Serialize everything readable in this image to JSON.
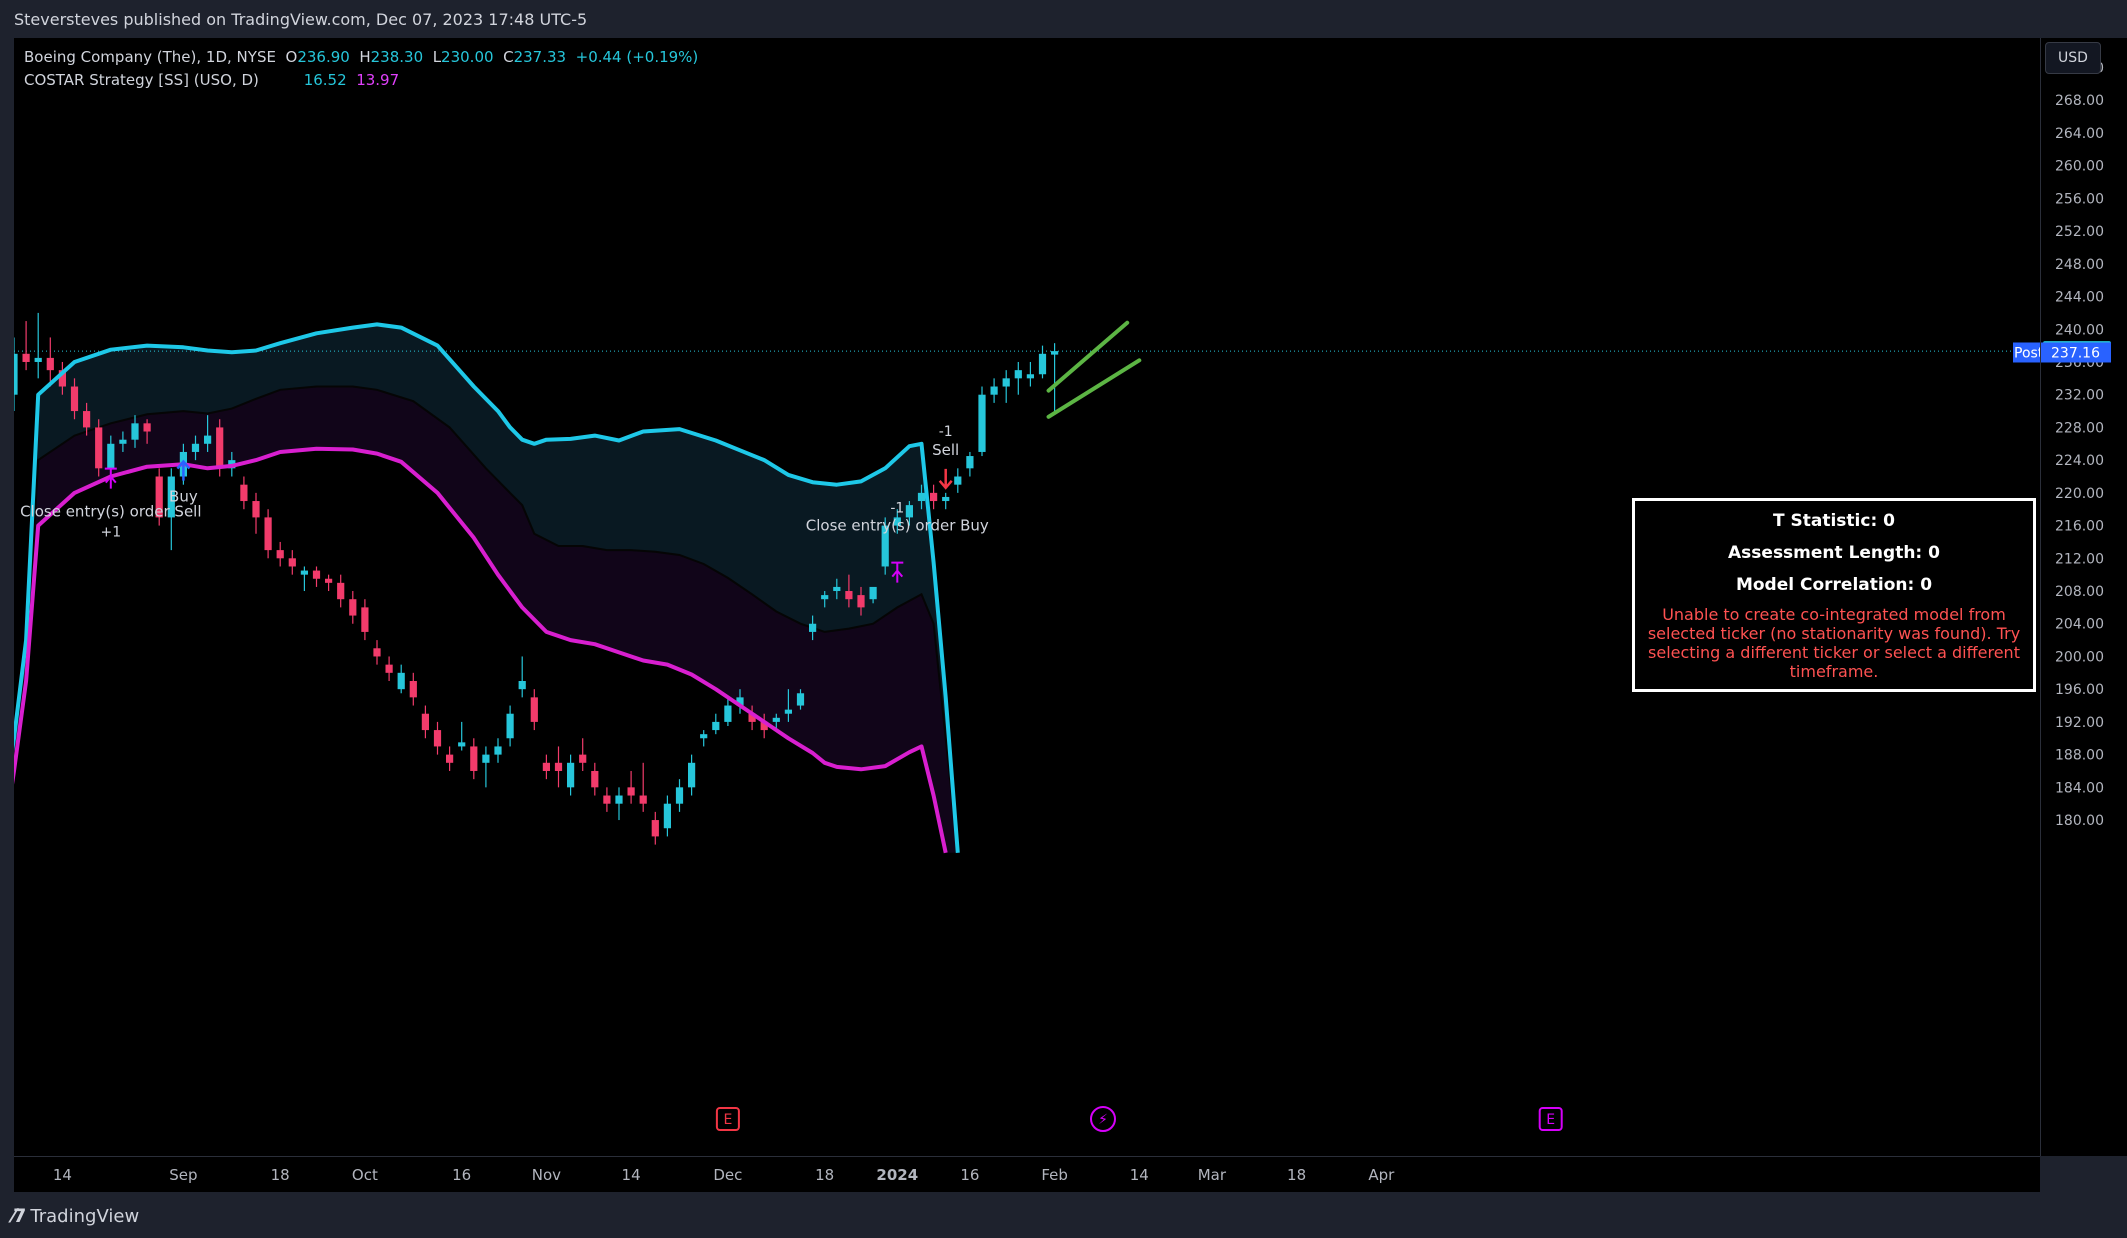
{
  "header": {
    "credit": "Steversteves published on TradingView.com, Dec 07, 2023 17:48 UTC-5"
  },
  "legend": {
    "line1_name": "Boeing Company (The), 1D, NYSE",
    "o_label": "O",
    "o_value": "236.90",
    "h_label": "H",
    "h_value": "238.30",
    "l_label": "L",
    "l_value": "230.00",
    "c_label": "C",
    "c_value": "237.33",
    "change": "+0.44 (+0.19%)",
    "line2_name": "COSTAR Strategy [SS] (USO, D)",
    "ind_value1": "16.52",
    "ind_value2": "13.97"
  },
  "currency_button": "USD",
  "footer": {
    "brand": "TradingView"
  },
  "info_box": {
    "t_stat": "T Statistic: 0",
    "assessment": "Assessment Length: 0",
    "correlation": "Model Correlation: 0",
    "warning": "Unable to create co-integrated model from selected ticker (no stationarity was found). Try selecting a different ticker or select a different timeframe."
  },
  "colors": {
    "up": "#26c6da",
    "down": "#f23b6b",
    "upper_band": "#1ec8e8",
    "lower_band": "#d81fcf",
    "trend": "#5cb544",
    "background": "#000000"
  },
  "chart_data": {
    "type": "candlestick",
    "symbol": "Boeing Company (The), 1D, NYSE",
    "ylim": [
      176,
      275
    ],
    "y_ticks": [
      "272.00",
      "268.00",
      "264.00",
      "260.00",
      "256.00",
      "252.00",
      "248.00",
      "244.00",
      "240.00",
      "236.00",
      "232.00",
      "228.00",
      "224.00",
      "220.00",
      "216.00",
      "212.00",
      "208.00",
      "204.00",
      "200.00",
      "196.00",
      "192.00",
      "188.00",
      "184.00",
      "180.00"
    ],
    "x_ticks": [
      "14",
      "Sep",
      "18",
      "Oct",
      "16",
      "Nov",
      "14",
      "Dec",
      "18",
      "2024",
      "16",
      "Feb",
      "14",
      "Mar",
      "18",
      "Apr"
    ],
    "last_price": "237.33",
    "post_label": "Post",
    "post_price": "237.16",
    "candles": [
      {
        "o": 232,
        "h": 239,
        "l": 230,
        "c": 237
      },
      {
        "o": 237,
        "h": 241,
        "l": 235,
        "c": 236
      },
      {
        "o": 236,
        "h": 242,
        "l": 234,
        "c": 236.5
      },
      {
        "o": 236.5,
        "h": 239,
        "l": 233,
        "c": 235
      },
      {
        "o": 235,
        "h": 236,
        "l": 232,
        "c": 233
      },
      {
        "o": 233,
        "h": 234,
        "l": 229,
        "c": 230
      },
      {
        "o": 230,
        "h": 231,
        "l": 227,
        "c": 228
      },
      {
        "o": 228,
        "h": 229,
        "l": 222,
        "c": 223
      },
      {
        "o": 223,
        "h": 227,
        "l": 221,
        "c": 226
      },
      {
        "o": 226,
        "h": 227.5,
        "l": 225,
        "c": 226.5
      },
      {
        "o": 226.5,
        "h": 229.5,
        "l": 225.5,
        "c": 228.5
      },
      {
        "o": 228.5,
        "h": 229,
        "l": 226,
        "c": 227.5
      },
      {
        "o": 222,
        "h": 223,
        "l": 216,
        "c": 217
      },
      {
        "o": 217,
        "h": 223,
        "l": 213,
        "c": 222
      },
      {
        "o": 222,
        "h": 226,
        "l": 221,
        "c": 225
      },
      {
        "o": 225,
        "h": 227,
        "l": 224,
        "c": 226
      },
      {
        "o": 226,
        "h": 229.5,
        "l": 225,
        "c": 227
      },
      {
        "o": 228,
        "h": 229,
        "l": 222,
        "c": 223
      },
      {
        "o": 223,
        "h": 225,
        "l": 222,
        "c": 224
      },
      {
        "o": 221,
        "h": 222,
        "l": 218,
        "c": 219
      },
      {
        "o": 219,
        "h": 220,
        "l": 215,
        "c": 217
      },
      {
        "o": 217,
        "h": 218,
        "l": 212,
        "c": 213
      },
      {
        "o": 213,
        "h": 214,
        "l": 211,
        "c": 212
      },
      {
        "o": 212,
        "h": 213,
        "l": 210,
        "c": 211
      },
      {
        "o": 210,
        "h": 211,
        "l": 208,
        "c": 210.5
      },
      {
        "o": 210.5,
        "h": 211,
        "l": 208.5,
        "c": 209.5
      },
      {
        "o": 209.5,
        "h": 210,
        "l": 208,
        "c": 209
      },
      {
        "o": 209,
        "h": 210,
        "l": 206,
        "c": 207
      },
      {
        "o": 207,
        "h": 208,
        "l": 204,
        "c": 205
      },
      {
        "o": 206,
        "h": 207,
        "l": 202,
        "c": 203
      },
      {
        "o": 201,
        "h": 202,
        "l": 199,
        "c": 200
      },
      {
        "o": 199,
        "h": 200,
        "l": 197,
        "c": 198
      },
      {
        "o": 196,
        "h": 199,
        "l": 195.5,
        "c": 198
      },
      {
        "o": 197,
        "h": 198,
        "l": 194,
        "c": 195
      },
      {
        "o": 193,
        "h": 194,
        "l": 190,
        "c": 191
      },
      {
        "o": 191,
        "h": 192,
        "l": 188,
        "c": 189
      },
      {
        "o": 188,
        "h": 189,
        "l": 186,
        "c": 187
      },
      {
        "o": 189,
        "h": 192,
        "l": 188.5,
        "c": 189.5
      },
      {
        "o": 189,
        "h": 190,
        "l": 185,
        "c": 186
      },
      {
        "o": 187,
        "h": 189,
        "l": 184,
        "c": 188
      },
      {
        "o": 188,
        "h": 190,
        "l": 187,
        "c": 189
      },
      {
        "o": 190,
        "h": 194,
        "l": 189,
        "c": 193
      },
      {
        "o": 196,
        "h": 200,
        "l": 195,
        "c": 197
      },
      {
        "o": 195,
        "h": 196,
        "l": 191,
        "c": 192
      },
      {
        "o": 187,
        "h": 188,
        "l": 185,
        "c": 186
      },
      {
        "o": 187,
        "h": 189,
        "l": 184,
        "c": 186
      },
      {
        "o": 184,
        "h": 188,
        "l": 183,
        "c": 187
      },
      {
        "o": 188,
        "h": 190,
        "l": 186,
        "c": 187
      },
      {
        "o": 186,
        "h": 187,
        "l": 183,
        "c": 184
      },
      {
        "o": 183,
        "h": 184,
        "l": 181,
        "c": 182
      },
      {
        "o": 182,
        "h": 184,
        "l": 180,
        "c": 183
      },
      {
        "o": 184,
        "h": 186,
        "l": 182,
        "c": 183
      },
      {
        "o": 183,
        "h": 187,
        "l": 181,
        "c": 182
      },
      {
        "o": 180,
        "h": 181,
        "l": 177,
        "c": 178
      },
      {
        "o": 179,
        "h": 183,
        "l": 178,
        "c": 182
      },
      {
        "o": 182,
        "h": 185,
        "l": 181,
        "c": 184
      },
      {
        "o": 184,
        "h": 188,
        "l": 183,
        "c": 187
      },
      {
        "o": 190,
        "h": 191,
        "l": 189,
        "c": 190.5
      },
      {
        "o": 191,
        "h": 193,
        "l": 190.5,
        "c": 192
      },
      {
        "o": 192,
        "h": 195,
        "l": 191.5,
        "c": 194
      },
      {
        "o": 194,
        "h": 196,
        "l": 193,
        "c": 195
      },
      {
        "o": 193,
        "h": 194,
        "l": 191,
        "c": 192
      },
      {
        "o": 192,
        "h": 193,
        "l": 190,
        "c": 191
      },
      {
        "o": 192,
        "h": 193,
        "l": 191,
        "c": 192.5
      },
      {
        "o": 193,
        "h": 196,
        "l": 192,
        "c": 193.5
      },
      {
        "o": 194,
        "h": 196,
        "l": 193.5,
        "c": 195.5
      },
      {
        "o": 203,
        "h": 205,
        "l": 202,
        "c": 204
      },
      {
        "o": 207,
        "h": 208,
        "l": 206,
        "c": 207.5
      },
      {
        "o": 208,
        "h": 209.5,
        "l": 207,
        "c": 208.5
      },
      {
        "o": 208,
        "h": 210,
        "l": 206,
        "c": 207
      },
      {
        "o": 207.5,
        "h": 208.5,
        "l": 205,
        "c": 206
      },
      {
        "o": 207,
        "h": 208,
        "l": 206.5,
        "c": 208.5
      },
      {
        "o": 211,
        "h": 217,
        "l": 210,
        "c": 216
      },
      {
        "o": 216,
        "h": 218,
        "l": 215,
        "c": 217
      },
      {
        "o": 217,
        "h": 219,
        "l": 216,
        "c": 218.5
      },
      {
        "o": 219,
        "h": 221,
        "l": 218,
        "c": 220
      },
      {
        "o": 220,
        "h": 221,
        "l": 218,
        "c": 219
      },
      {
        "o": 219,
        "h": 220,
        "l": 218,
        "c": 219.5
      },
      {
        "o": 221,
        "h": 223,
        "l": 220,
        "c": 222
      },
      {
        "o": 223,
        "h": 225,
        "l": 222,
        "c": 224.5
      },
      {
        "o": 225,
        "h": 233,
        "l": 224.5,
        "c": 232
      },
      {
        "o": 232,
        "h": 234,
        "l": 231,
        "c": 233
      },
      {
        "o": 233,
        "h": 235,
        "l": 231,
        "c": 234
      },
      {
        "o": 234,
        "h": 236,
        "l": 232,
        "c": 235
      },
      {
        "o": 234,
        "h": 236,
        "l": 233,
        "c": 234.5
      },
      {
        "o": 234.5,
        "h": 238,
        "l": 234,
        "c": 237
      },
      {
        "o": 236.9,
        "h": 238.3,
        "l": 230,
        "c": 237.33
      }
    ],
    "upper_band": [
      [
        -1.5,
        176
      ],
      [
        0,
        190
      ],
      [
        1,
        202
      ],
      [
        2,
        232
      ],
      [
        5,
        236
      ],
      [
        8,
        237.5
      ],
      [
        11,
        238
      ],
      [
        14,
        237.8
      ],
      [
        16,
        237.4
      ],
      [
        18,
        237.2
      ],
      [
        20,
        237.4
      ],
      [
        22,
        238.3
      ],
      [
        25,
        239.5
      ],
      [
        28,
        240.2
      ],
      [
        30,
        240.6
      ],
      [
        32,
        240.2
      ],
      [
        35,
        238
      ],
      [
        38,
        233
      ],
      [
        40,
        230
      ],
      [
        41,
        228
      ],
      [
        42,
        226.5
      ],
      [
        43,
        226
      ],
      [
        44,
        226.5
      ],
      [
        46,
        226.6
      ],
      [
        48,
        227
      ],
      [
        50,
        226.4
      ],
      [
        52,
        227.5
      ],
      [
        55,
        227.8
      ],
      [
        58,
        226.4
      ],
      [
        60,
        225.2
      ],
      [
        62,
        224
      ],
      [
        64,
        222.2
      ],
      [
        66,
        221.3
      ],
      [
        68,
        221
      ],
      [
        70,
        221.4
      ],
      [
        72,
        223
      ],
      [
        74,
        225.7
      ],
      [
        75,
        226
      ],
      [
        76,
        211.5
      ],
      [
        77,
        195
      ],
      [
        78,
        176
      ]
    ],
    "mid_band": [
      [
        0,
        190
      ],
      [
        1,
        198
      ],
      [
        2,
        224
      ],
      [
        5,
        227
      ],
      [
        8,
        228.5
      ],
      [
        11,
        229.6
      ],
      [
        14,
        230
      ],
      [
        16,
        229.7
      ],
      [
        18,
        230.3
      ],
      [
        20,
        231.5
      ],
      [
        22,
        232.6
      ],
      [
        25,
        233
      ],
      [
        28,
        233
      ],
      [
        30,
        232.6
      ],
      [
        33,
        231.2
      ],
      [
        36,
        228
      ],
      [
        39,
        223
      ],
      [
        41,
        220
      ],
      [
        42,
        218.5
      ],
      [
        43,
        215
      ],
      [
        45,
        213.5
      ],
      [
        47,
        213.5
      ],
      [
        49,
        213
      ],
      [
        51,
        213
      ],
      [
        53,
        212.8
      ],
      [
        55,
        212.4
      ],
      [
        57,
        211.3
      ],
      [
        59,
        209.6
      ],
      [
        61,
        207.6
      ],
      [
        63,
        205.5
      ],
      [
        65,
        204
      ],
      [
        67,
        203
      ],
      [
        69,
        203.4
      ],
      [
        71,
        204
      ],
      [
        73,
        206
      ],
      [
        75,
        207.6
      ],
      [
        76,
        204
      ],
      [
        77,
        190
      ],
      [
        78,
        176
      ]
    ],
    "lower_band": [
      [
        -1,
        176
      ],
      [
        0,
        186
      ],
      [
        1,
        197
      ],
      [
        2,
        216
      ],
      [
        5,
        220
      ],
      [
        8,
        222
      ],
      [
        11,
        223.2
      ],
      [
        14,
        223.5
      ],
      [
        16,
        223
      ],
      [
        18,
        223.3
      ],
      [
        20,
        224
      ],
      [
        22,
        225
      ],
      [
        25,
        225.4
      ],
      [
        28,
        225.3
      ],
      [
        30,
        224.8
      ],
      [
        32,
        223.8
      ],
      [
        35,
        220
      ],
      [
        38,
        214.5
      ],
      [
        40,
        210
      ],
      [
        42,
        206
      ],
      [
        44,
        203
      ],
      [
        46,
        202
      ],
      [
        48,
        201.5
      ],
      [
        50,
        200.5
      ],
      [
        52,
        199.5
      ],
      [
        54,
        199
      ],
      [
        56,
        197.8
      ],
      [
        58,
        196
      ],
      [
        60,
        194
      ],
      [
        62,
        192
      ],
      [
        64,
        190
      ],
      [
        66,
        188.2
      ],
      [
        67,
        187
      ],
      [
        68,
        186.5
      ],
      [
        70,
        186.2
      ],
      [
        72,
        186.6
      ],
      [
        74,
        188.3
      ],
      [
        75,
        189
      ],
      [
        76,
        183
      ],
      [
        77,
        176
      ]
    ],
    "trend_lines": [
      {
        "from": [
          85.5,
          232.5
        ],
        "to": [
          92,
          240.8
        ]
      },
      {
        "from": [
          85.5,
          229.3
        ],
        "to": [
          93,
          236.2
        ]
      }
    ],
    "signals": [
      {
        "type": "close",
        "index": 8,
        "text": "Close entry(s) order Sell",
        "qty": "+1",
        "price": 221.5
      },
      {
        "type": "buy",
        "index": 14,
        "text": "Buy",
        "price": 221.5
      },
      {
        "type": "close",
        "index": 73,
        "text": "Close entry(s) order Buy",
        "qty": "-1",
        "price": 210
      },
      {
        "type": "sell",
        "index": 77,
        "text": "Sell",
        "qty": "-1",
        "price": 220
      }
    ],
    "events": [
      {
        "type": "earnings",
        "index": 59,
        "label": "E"
      },
      {
        "type": "dividend",
        "index": 90,
        "label": "⚡"
      },
      {
        "type": "earnings",
        "index": 127,
        "label": "E"
      }
    ],
    "legend_values": [
      "16.52",
      "13.97"
    ]
  }
}
